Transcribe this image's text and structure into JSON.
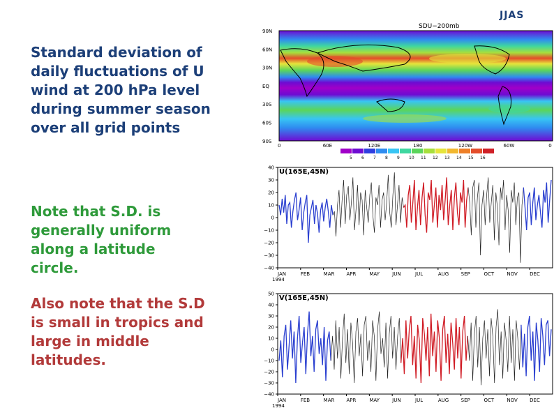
{
  "season": "JJAS",
  "text": {
    "para1": "Standard deviation of daily fluctuations of U wind at 200 hPa level during summer season over all grid points",
    "para2": "Note that S.D. is generally uniform along a latitude circle.",
    "para3": "Also note that the S.D is small in tropics and large in middle latitudes."
  },
  "map": {
    "title": "SDU−200mb",
    "lat_labels": [
      "90N",
      "60N",
      "30N",
      "EQ",
      "30S",
      "60S",
      "90S"
    ],
    "lon_labels": [
      "0",
      "60E",
      "120E",
      "180",
      "120W",
      "60W",
      "0"
    ],
    "colorbar": {
      "labels": [
        "5",
        "6",
        "7",
        "8",
        "9",
        "10",
        "11",
        "12",
        "13",
        "14",
        "15",
        "16"
      ],
      "colors": [
        "#a000c8",
        "#6e0bd2",
        "#2f3ee0",
        "#2f8cf0",
        "#38c5f4",
        "#3fd7a0",
        "#5bd55b",
        "#a7df3c",
        "#e6e53b",
        "#f2b82f",
        "#ee7f28",
        "#e34d2a",
        "#cf2027"
      ]
    }
  },
  "chart_data": [
    {
      "type": "line",
      "title": "U(165E,45N)",
      "y_ticks": [
        40,
        30,
        20,
        10,
        0,
        -10,
        -20,
        -30,
        -40
      ],
      "ylim": [
        -40,
        40
      ],
      "x_ticks": [
        "JAN",
        "FEB",
        "MAR",
        "APR",
        "MAY",
        "JUN",
        "JUL",
        "AUG",
        "SEP",
        "OCT",
        "NOV",
        "DEC"
      ],
      "x_year": "1994",
      "segments": [
        {
          "color": "#2a3fd0",
          "months": "JAN-FEB",
          "y": [
            10,
            2,
            15,
            4,
            18,
            -5,
            10,
            12,
            -8,
            5,
            14,
            20,
            -2,
            6,
            16,
            -10,
            4,
            12,
            18,
            -20,
            2,
            8,
            14,
            -5,
            10,
            3,
            -12,
            6,
            12,
            -3,
            8,
            15,
            5,
            -8,
            10,
            2
          ]
        },
        {
          "color": "#222222",
          "months": "FEB-MAY",
          "y": [
            5,
            -15,
            10,
            22,
            -8,
            14,
            30,
            -5,
            18,
            25,
            -2,
            12,
            32,
            -10,
            6,
            26,
            -6,
            20,
            14,
            -14,
            22,
            8,
            -4,
            18,
            28,
            2,
            -12,
            16,
            10,
            26,
            -8,
            14,
            20,
            -2,
            12,
            34,
            4,
            -8,
            18,
            36,
            -6,
            10,
            26,
            -4,
            16,
            8
          ]
        },
        {
          "color": "#d01c25",
          "months": "JUN-AUG",
          "y": [
            10,
            -8,
            18,
            26,
            -4,
            12,
            30,
            -10,
            8,
            22,
            -6,
            16,
            28,
            2,
            -12,
            20,
            14,
            30,
            -4,
            10,
            24,
            -8,
            18,
            6,
            26,
            -2,
            14,
            32,
            -6,
            10,
            22,
            -10,
            16,
            28,
            4,
            -6,
            20,
            12,
            30,
            -8,
            14,
            24
          ]
        },
        {
          "color": "#222222",
          "months": "SEP-NOV",
          "y": [
            12,
            -14,
            24,
            30,
            -8,
            16,
            28,
            -30,
            10,
            22,
            -6,
            18,
            32,
            -4,
            12,
            26,
            -18,
            20,
            8,
            -22,
            24,
            14,
            30,
            -10,
            18,
            6,
            -28,
            22,
            12,
            28,
            -6,
            16,
            20,
            -36,
            10,
            24
          ]
        },
        {
          "color": "#2a3fd0",
          "months": "NOV-DEC",
          "y": [
            8,
            -10,
            16,
            20,
            -6,
            12,
            24,
            -2,
            10,
            18,
            4,
            -8,
            22,
            12,
            28,
            -4,
            14,
            30
          ]
        }
      ]
    },
    {
      "type": "line",
      "title": "V(165E,45N)",
      "y_ticks": [
        50,
        40,
        30,
        20,
        10,
        0,
        -10,
        -20,
        -30,
        -40
      ],
      "ylim": [
        -40,
        50
      ],
      "x_ticks": [
        "JAN",
        "FEB",
        "MAR",
        "APR",
        "MAY",
        "JUN",
        "JUL",
        "AUG",
        "SEP",
        "OCT",
        "NOV",
        "DEC"
      ],
      "x_year": "1994",
      "segments": [
        {
          "color": "#2a3fd0",
          "months": "JAN-FEB",
          "y": [
            -10,
            8,
            -25,
            12,
            22,
            -18,
            4,
            26,
            -8,
            16,
            -30,
            10,
            30,
            -12,
            6,
            20,
            -22,
            14,
            34,
            -6,
            12,
            -20,
            18,
            26,
            -4,
            10,
            -14,
            20,
            -28,
            8,
            16,
            -10
          ]
        },
        {
          "color": "#222222",
          "months": "FEB-MAY",
          "y": [
            12,
            -18,
            26,
            -8,
            20,
            -26,
            10,
            32,
            -12,
            18,
            -22,
            24,
            6,
            -30,
            16,
            28,
            -6,
            14,
            -24,
            22,
            30,
            -10,
            8,
            -20,
            26,
            12,
            -28,
            18,
            34,
            -4,
            10,
            -16,
            24,
            -26,
            14,
            30,
            -8,
            20,
            -18,
            12,
            28,
            -12
          ]
        },
        {
          "color": "#d01c25",
          "months": "JUN-AUG",
          "y": [
            10,
            -22,
            26,
            -8,
            18,
            30,
            -14,
            12,
            -26,
            22,
            8,
            -30,
            28,
            14,
            -10,
            20,
            -24,
            32,
            -6,
            16,
            -20,
            26,
            10,
            -28,
            18,
            30,
            -12,
            14,
            -22,
            24,
            6,
            -18,
            28,
            -8,
            20,
            -26,
            16,
            30,
            -10,
            12
          ]
        },
        {
          "color": "#222222",
          "months": "SEP-NOV",
          "y": [
            -10,
            24,
            -28,
            14,
            30,
            -16,
            20,
            -32,
            10,
            26,
            -8,
            18,
            -24,
            28,
            12,
            -30,
            20,
            36,
            -14,
            16,
            -26,
            24,
            8,
            -20,
            30,
            -12,
            18,
            -28,
            26,
            10,
            -18,
            22
          ]
        },
        {
          "color": "#2a3fd0",
          "months": "NOV-DEC",
          "y": [
            -16,
            14,
            -24,
            20,
            30,
            -10,
            16,
            -28,
            24,
            8,
            -20,
            28,
            12,
            -14,
            22,
            26,
            -6,
            18
          ]
        }
      ]
    }
  ]
}
